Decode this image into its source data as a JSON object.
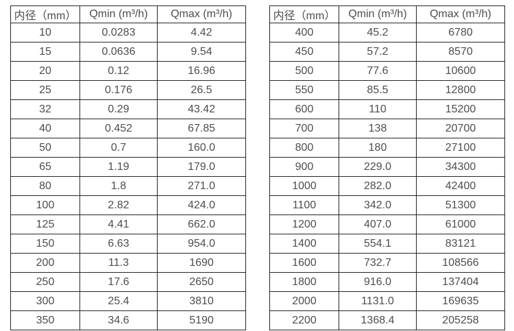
{
  "tables": [
    {
      "name": "small-diameters",
      "headers": [
        "内径（mm）",
        "Qmin (m³/h)",
        "Qmax (m³/h)"
      ],
      "rows": [
        [
          "10",
          "0.0283",
          "4.42"
        ],
        [
          "15",
          "0.0636",
          "9.54"
        ],
        [
          "20",
          "0.12",
          "16.96"
        ],
        [
          "25",
          "0.176",
          "26.5"
        ],
        [
          "32",
          "0.29",
          "43.42"
        ],
        [
          "40",
          "0.452",
          "67.85"
        ],
        [
          "50",
          "0.7",
          "160.0"
        ],
        [
          "65",
          "1.19",
          "179.0"
        ],
        [
          "80",
          "1.8",
          "271.0"
        ],
        [
          "100",
          "2.82",
          "424.0"
        ],
        [
          "125",
          "4.41",
          "662.0"
        ],
        [
          "150",
          "6.63",
          "954.0"
        ],
        [
          "200",
          "11.3",
          "1690"
        ],
        [
          "250",
          "17.6",
          "2650"
        ],
        [
          "300",
          "25.4",
          "3810"
        ],
        [
          "350",
          "34.6",
          "5190"
        ]
      ]
    },
    {
      "name": "large-diameters",
      "headers": [
        "内径（mm）",
        "Qmin (m³/h)",
        "Qmax (m³/h)"
      ],
      "rows": [
        [
          "400",
          "45.2",
          "6780"
        ],
        [
          "450",
          "57.2",
          "8570"
        ],
        [
          "500",
          "77.6",
          "10600"
        ],
        [
          "550",
          "85.5",
          "12800"
        ],
        [
          "600",
          "110",
          "15200"
        ],
        [
          "700",
          "138",
          "20700"
        ],
        [
          "800",
          "180",
          "27100"
        ],
        [
          "900",
          "229.0",
          "34300"
        ],
        [
          "1000",
          "282.0",
          "42400"
        ],
        [
          "1100",
          "342.0",
          "51300"
        ],
        [
          "1200",
          "407.0",
          "61000"
        ],
        [
          "1400",
          "554.1",
          "83121"
        ],
        [
          "1600",
          "732.7",
          "108566"
        ],
        [
          "1800",
          "916.0",
          "137404"
        ],
        [
          "2000",
          "1131.0",
          "169635"
        ],
        [
          "2200",
          "1368.4",
          "205258"
        ]
      ]
    }
  ],
  "colors": {
    "border": "#262626",
    "text": "#4d4d4d",
    "background": "#ffffff"
  }
}
